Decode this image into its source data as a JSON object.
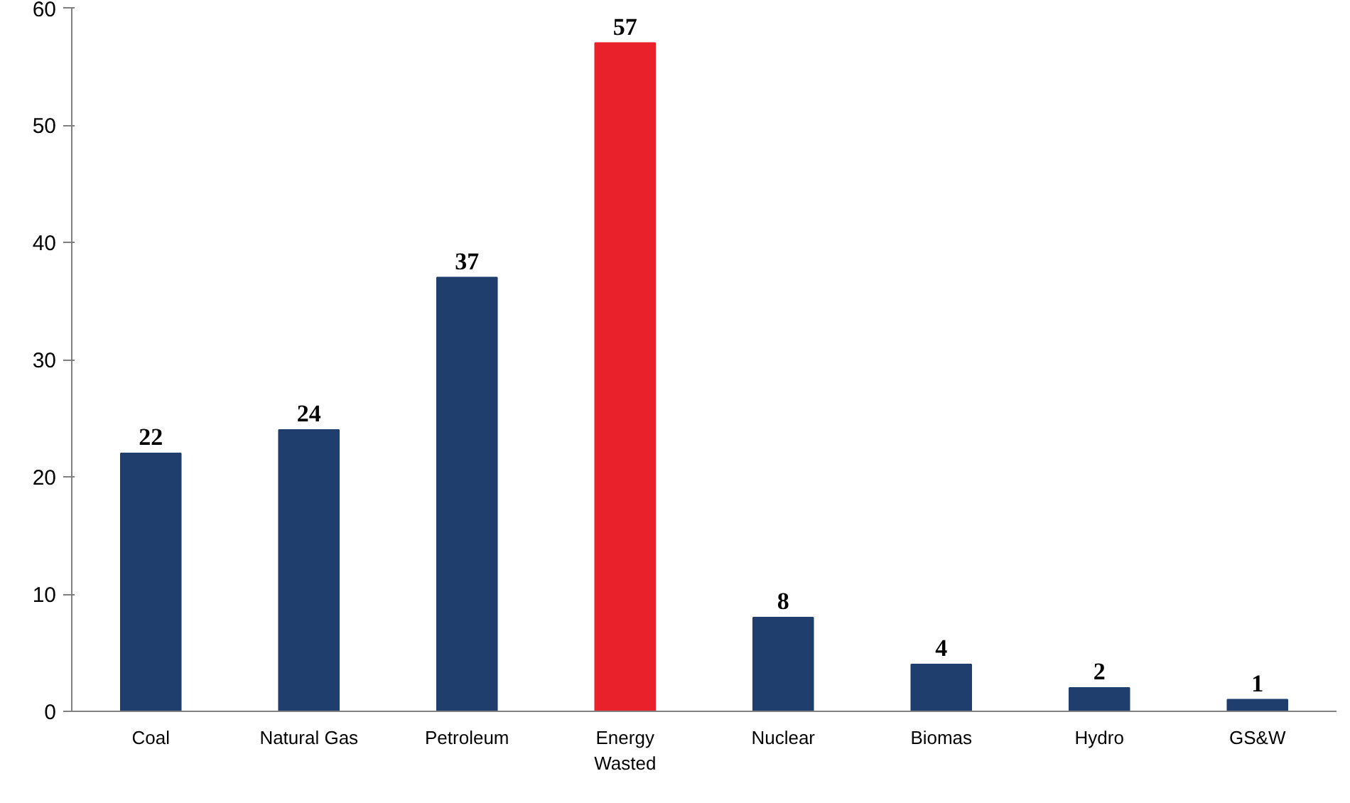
{
  "chart_data": {
    "type": "bar",
    "categories": [
      "Coal",
      "Natural Gas",
      "Petroleum",
      "Energy\nWasted",
      "Nuclear",
      "Biomas",
      "Hydro",
      "GS&W"
    ],
    "values": [
      22,
      24,
      37,
      57,
      8,
      4,
      2,
      1
    ],
    "colors": [
      "#1f3e6d",
      "#1f3e6d",
      "#1f3e6d",
      "#e8212a",
      "#1f3e6d",
      "#1f3e6d",
      "#1f3e6d",
      "#1f3e6d"
    ],
    "ylim": [
      0,
      60
    ],
    "yticks": [
      0,
      10,
      20,
      30,
      40,
      50,
      60
    ],
    "data_labels": true
  }
}
